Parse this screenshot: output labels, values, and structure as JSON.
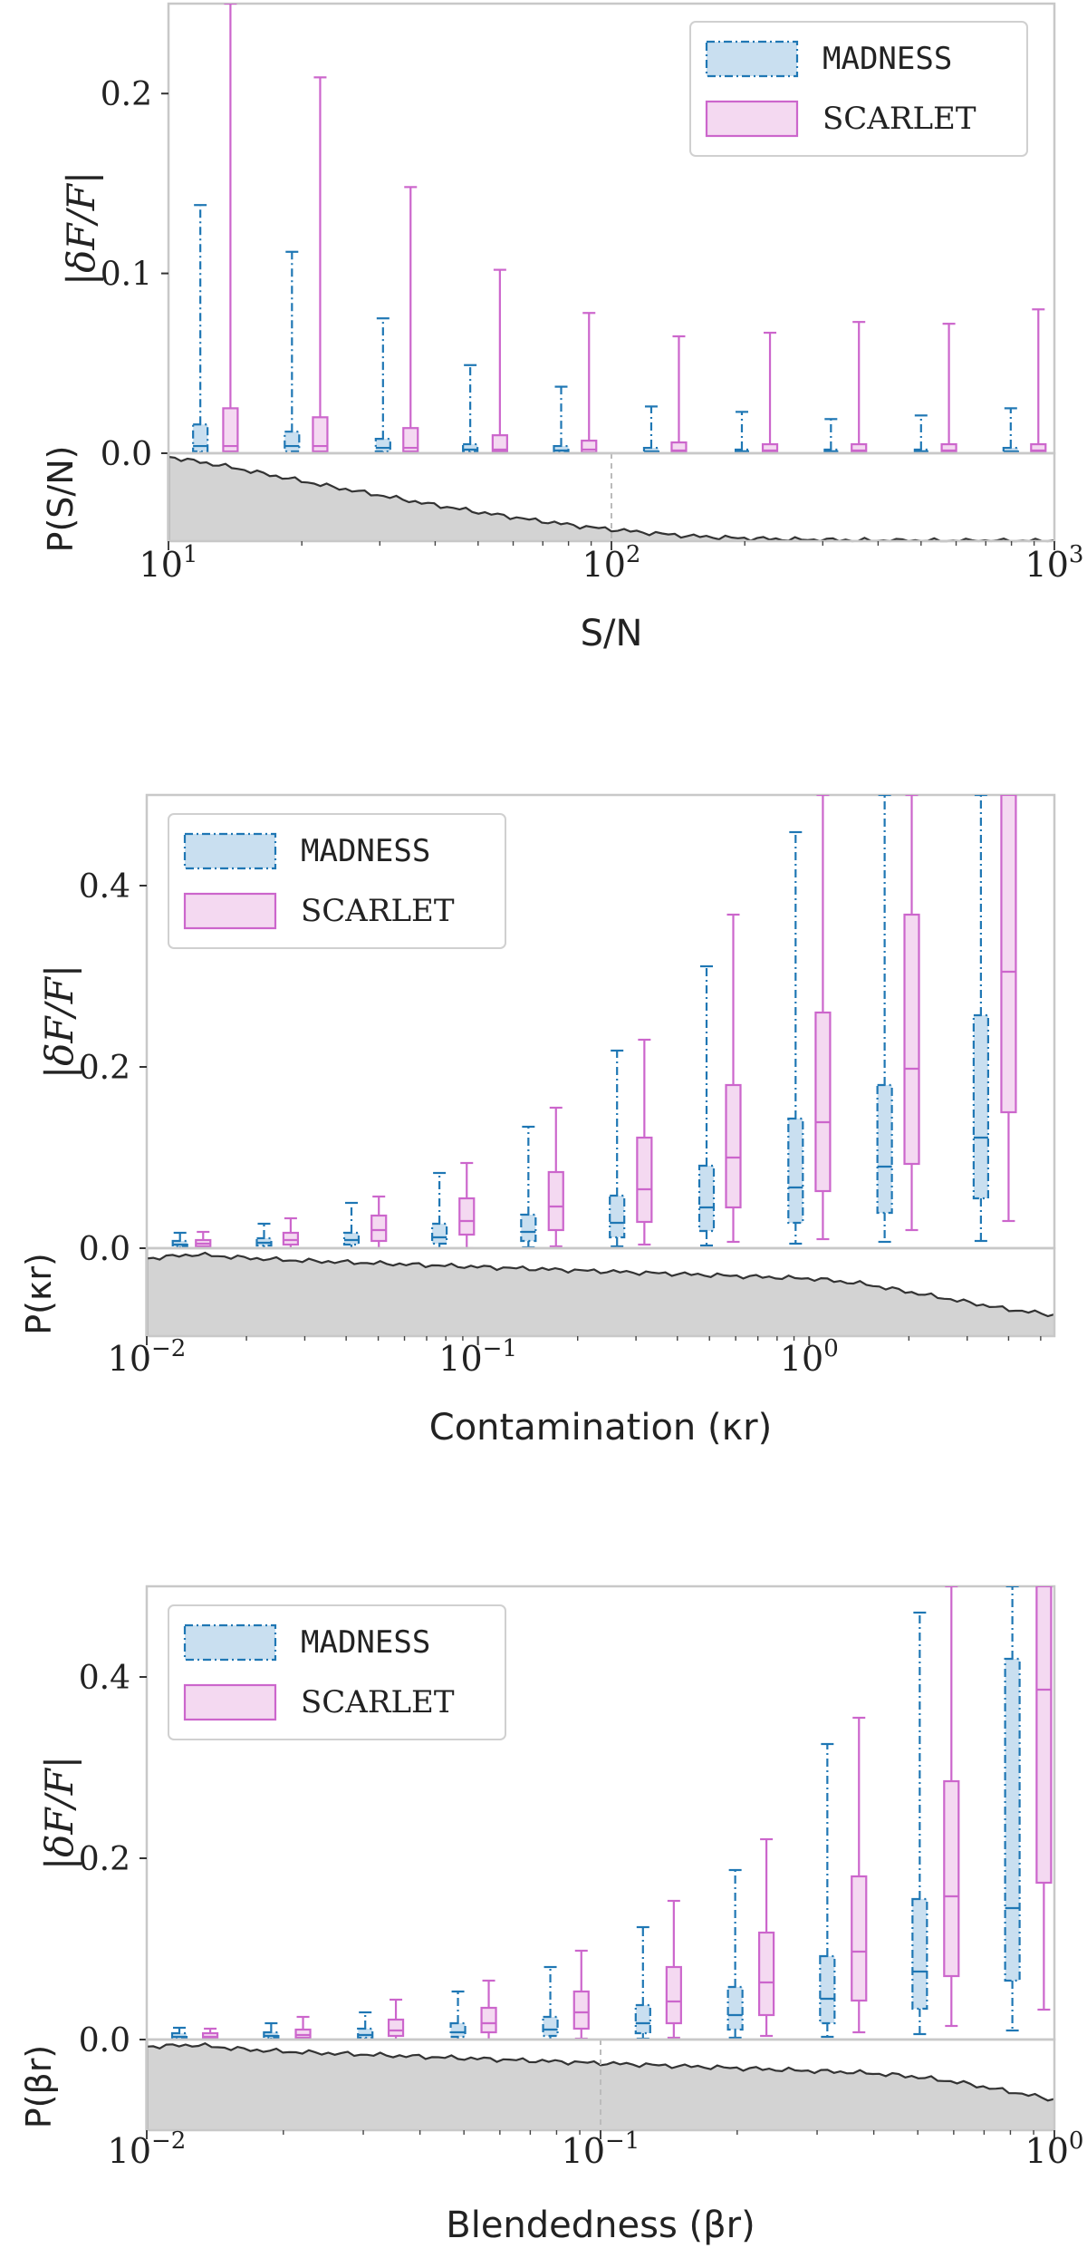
{
  "colors": {
    "madness_edge": "#1f77b4",
    "madness_fill": "#c9dff0",
    "scarlet_edge": "#cc66cc",
    "scarlet_fill": "#f4d9f1",
    "hist_fill": "#d3d3d3",
    "hist_line": "#333333",
    "frame": "#c8c8c8"
  },
  "chart_data": [
    {
      "type": "box",
      "title": "",
      "xlabel": "S/N",
      "ylabel": "|δF/F|",
      "xlim": [
        10,
        1000
      ],
      "xscale": "log",
      "ylim": [
        0,
        0.25
      ],
      "yticks": [
        0.0,
        0.1,
        0.2
      ],
      "ytick_labels": [
        "0.0",
        "0.1",
        "0.2"
      ],
      "xtick_exponents": [
        "1",
        "2",
        "3"
      ],
      "legend": {
        "placement": "top-right",
        "entries": [
          "MADNESS",
          "SCARLET"
        ]
      },
      "hist_ylabel": "P(S/N)",
      "hist_marker_x": 100,
      "hist_shape": [
        1.0,
        0.9,
        0.78,
        0.66,
        0.55,
        0.44,
        0.34,
        0.25,
        0.17,
        0.11,
        0.06,
        0.035,
        0.02,
        0.012,
        0.007,
        0.005,
        0.004,
        0.003
      ],
      "series": [
        {
          "name": "MADNESS",
          "boxes": [
            {
              "x": 11.8,
              "min": 0,
              "q1": 0.001,
              "med": 0.004,
              "q3": 0.016,
              "max": 0.138
            },
            {
              "x": 19.0,
              "min": 0,
              "q1": 0.001,
              "med": 0.004,
              "q3": 0.012,
              "max": 0.112
            },
            {
              "x": 30.5,
              "min": 0,
              "q1": 0.001,
              "med": 0.003,
              "q3": 0.008,
              "max": 0.075
            },
            {
              "x": 48.0,
              "min": 0,
              "q1": 0.001,
              "med": 0.002,
              "q3": 0.005,
              "max": 0.049
            },
            {
              "x": 77.0,
              "min": 0,
              "q1": 0.0005,
              "med": 0.0015,
              "q3": 0.004,
              "max": 0.037
            },
            {
              "x": 123,
              "min": 0,
              "q1": 0.0005,
              "med": 0.001,
              "q3": 0.003,
              "max": 0.026
            },
            {
              "x": 197,
              "min": 0,
              "q1": 0.0005,
              "med": 0.001,
              "q3": 0.002,
              "max": 0.023
            },
            {
              "x": 313,
              "min": 0,
              "q1": 0.0005,
              "med": 0.001,
              "q3": 0.002,
              "max": 0.019
            },
            {
              "x": 500,
              "min": 0,
              "q1": 0.0005,
              "med": 0.001,
              "q3": 0.002,
              "max": 0.021
            },
            {
              "x": 797,
              "min": 0,
              "q1": 0.0005,
              "med": 0.001,
              "q3": 0.003,
              "max": 0.025
            }
          ]
        },
        {
          "name": "SCARLET",
          "boxes": [
            {
              "x": 13.8,
              "min": 0,
              "q1": 0.001,
              "med": 0.004,
              "q3": 0.025,
              "max": 0.25
            },
            {
              "x": 22.0,
              "min": 0,
              "q1": 0.001,
              "med": 0.004,
              "q3": 0.02,
              "max": 0.209
            },
            {
              "x": 35.2,
              "min": 0,
              "q1": 0.001,
              "med": 0.003,
              "q3": 0.014,
              "max": 0.148
            },
            {
              "x": 56.0,
              "min": 0,
              "q1": 0.001,
              "med": 0.002,
              "q3": 0.01,
              "max": 0.102
            },
            {
              "x": 89.0,
              "min": 0,
              "q1": 0.0005,
              "med": 0.002,
              "q3": 0.007,
              "max": 0.078
            },
            {
              "x": 142,
              "min": 0,
              "q1": 0.0005,
              "med": 0.0015,
              "q3": 0.006,
              "max": 0.065
            },
            {
              "x": 228,
              "min": 0,
              "q1": 0.0005,
              "med": 0.0015,
              "q3": 0.005,
              "max": 0.067
            },
            {
              "x": 362,
              "min": 0,
              "q1": 0.0005,
              "med": 0.0015,
              "q3": 0.005,
              "max": 0.073
            },
            {
              "x": 578,
              "min": 0,
              "q1": 0.0005,
              "med": 0.0015,
              "q3": 0.005,
              "max": 0.072
            },
            {
              "x": 920,
              "min": 0,
              "q1": 0.0005,
              "med": 0.0015,
              "q3": 0.005,
              "max": 0.08
            }
          ]
        }
      ]
    },
    {
      "type": "box",
      "title": "",
      "xlabel": "Contamination (κr)",
      "ylabel": "|δF/F|",
      "xlim": [
        0.01,
        5.5
      ],
      "xscale": "log",
      "ylim": [
        0,
        0.5
      ],
      "yticks": [
        0.0,
        0.2,
        0.4
      ],
      "ytick_labels": [
        "0.0",
        "0.2",
        "0.4"
      ],
      "xtick_exponents": [
        "−2",
        "−1",
        "0"
      ],
      "legend": {
        "placement": "top-left",
        "entries": [
          "MADNESS",
          "SCARLET"
        ]
      },
      "hist_ylabel": "P(κr)",
      "hist_marker_x": null,
      "hist_shape": [
        0.92,
        0.97,
        0.93,
        0.9,
        0.88,
        0.86,
        0.84,
        0.82,
        0.8,
        0.78,
        0.76,
        0.74,
        0.72,
        0.7,
        0.68,
        0.62,
        0.52,
        0.42,
        0.32,
        0.25
      ],
      "series": [
        {
          "name": "MADNESS",
          "boxes": [
            {
              "x": 0.0126,
              "min": 0,
              "q1": 0.002,
              "med": 0.004,
              "q3": 0.008,
              "max": 0.017
            },
            {
              "x": 0.0226,
              "min": 0,
              "q1": 0.003,
              "med": 0.006,
              "q3": 0.011,
              "max": 0.027
            },
            {
              "x": 0.0415,
              "min": 0,
              "q1": 0.004,
              "med": 0.009,
              "q3": 0.017,
              "max": 0.05
            },
            {
              "x": 0.0765,
              "min": 0,
              "q1": 0.005,
              "med": 0.012,
              "q3": 0.027,
              "max": 0.083
            },
            {
              "x": 0.142,
              "min": 0.001,
              "q1": 0.008,
              "med": 0.018,
              "q3": 0.037,
              "max": 0.134
            },
            {
              "x": 0.263,
              "min": 0.002,
              "q1": 0.012,
              "med": 0.028,
              "q3": 0.058,
              "max": 0.218
            },
            {
              "x": 0.49,
              "min": 0.003,
              "q1": 0.019,
              "med": 0.045,
              "q3": 0.091,
              "max": 0.311
            },
            {
              "x": 0.91,
              "min": 0.005,
              "q1": 0.028,
              "med": 0.067,
              "q3": 0.143,
              "max": 0.459
            },
            {
              "x": 1.69,
              "min": 0.007,
              "q1": 0.039,
              "med": 0.09,
              "q3": 0.18,
              "max": 0.5
            },
            {
              "x": 3.3,
              "min": 0.008,
              "q1": 0.055,
              "med": 0.122,
              "q3": 0.257,
              "max": 0.5
            }
          ]
        },
        {
          "name": "SCARLET",
          "boxes": [
            {
              "x": 0.0148,
              "min": 0,
              "q1": 0.002,
              "med": 0.005,
              "q3": 0.009,
              "max": 0.018
            },
            {
              "x": 0.0272,
              "min": 0,
              "q1": 0.004,
              "med": 0.009,
              "q3": 0.017,
              "max": 0.033
            },
            {
              "x": 0.0502,
              "min": 0,
              "q1": 0.008,
              "med": 0.02,
              "q3": 0.036,
              "max": 0.057
            },
            {
              "x": 0.0925,
              "min": 0,
              "q1": 0.015,
              "med": 0.03,
              "q3": 0.055,
              "max": 0.094
            },
            {
              "x": 0.172,
              "min": 0.002,
              "q1": 0.02,
              "med": 0.046,
              "q3": 0.084,
              "max": 0.155
            },
            {
              "x": 0.318,
              "min": 0.004,
              "q1": 0.029,
              "med": 0.065,
              "q3": 0.122,
              "max": 0.23
            },
            {
              "x": 0.59,
              "min": 0.007,
              "q1": 0.045,
              "med": 0.1,
              "q3": 0.18,
              "max": 0.368
            },
            {
              "x": 1.1,
              "min": 0.01,
              "q1": 0.063,
              "med": 0.139,
              "q3": 0.26,
              "max": 0.5
            },
            {
              "x": 2.04,
              "min": 0.02,
              "q1": 0.093,
              "med": 0.198,
              "q3": 0.368,
              "max": 0.5
            },
            {
              "x": 4.0,
              "min": 0.03,
              "q1": 0.15,
              "med": 0.305,
              "q3": 0.5,
              "max": 0.5
            }
          ]
        }
      ]
    },
    {
      "type": "box",
      "title": "",
      "xlabel": "Blendedness (βr)",
      "ylabel": "|δF/F|",
      "xlim": [
        0.01,
        1
      ],
      "xscale": "log",
      "ylim": [
        0,
        0.5
      ],
      "yticks": [
        0.0,
        0.2,
        0.4
      ],
      "ytick_labels": [
        "0.0",
        "0.2",
        "0.4"
      ],
      "xtick_exponents": [
        "−2",
        "−1",
        "0"
      ],
      "legend": {
        "placement": "top-left",
        "entries": [
          "MADNESS",
          "SCARLET"
        ]
      },
      "hist_ylabel": "P(βr)",
      "hist_marker_x": 0.1,
      "hist_shape": [
        0.96,
        0.98,
        0.93,
        0.9,
        0.88,
        0.86,
        0.84,
        0.82,
        0.8,
        0.78,
        0.76,
        0.74,
        0.72,
        0.7,
        0.68,
        0.66,
        0.62,
        0.55,
        0.45,
        0.35
      ],
      "series": [
        {
          "name": "MADNESS",
          "boxes": [
            {
              "x": 0.0118,
              "min": 0,
              "q1": 0.001,
              "med": 0.003,
              "q3": 0.007,
              "max": 0.013
            },
            {
              "x": 0.0188,
              "min": 0,
              "q1": 0.002,
              "med": 0.004,
              "q3": 0.008,
              "max": 0.018
            },
            {
              "x": 0.0303,
              "min": 0,
              "q1": 0.002,
              "med": 0.005,
              "q3": 0.012,
              "max": 0.03
            },
            {
              "x": 0.0485,
              "min": 0,
              "q1": 0.003,
              "med": 0.008,
              "q3": 0.018,
              "max": 0.053
            },
            {
              "x": 0.0775,
              "min": 0,
              "q1": 0.004,
              "med": 0.011,
              "q3": 0.025,
              "max": 0.08
            },
            {
              "x": 0.124,
              "min": 0.001,
              "q1": 0.007,
              "med": 0.018,
              "q3": 0.038,
              "max": 0.124
            },
            {
              "x": 0.198,
              "min": 0.002,
              "q1": 0.011,
              "med": 0.027,
              "q3": 0.058,
              "max": 0.187
            },
            {
              "x": 0.316,
              "min": 0.003,
              "q1": 0.018,
              "med": 0.045,
              "q3": 0.092,
              "max": 0.326
            },
            {
              "x": 0.505,
              "min": 0.006,
              "q1": 0.034,
              "med": 0.075,
              "q3": 0.155,
              "max": 0.471
            },
            {
              "x": 0.808,
              "min": 0.01,
              "q1": 0.065,
              "med": 0.145,
              "q3": 0.42,
              "max": 0.5
            }
          ]
        },
        {
          "name": "SCARLET",
          "boxes": [
            {
              "x": 0.0138,
              "min": 0,
              "q1": 0.001,
              "med": 0.003,
              "q3": 0.007,
              "max": 0.012
            },
            {
              "x": 0.0221,
              "min": 0,
              "q1": 0.002,
              "med": 0.005,
              "q3": 0.011,
              "max": 0.025
            },
            {
              "x": 0.0354,
              "min": 0,
              "q1": 0.004,
              "med": 0.01,
              "q3": 0.022,
              "max": 0.044
            },
            {
              "x": 0.0567,
              "min": 0,
              "q1": 0.008,
              "med": 0.018,
              "q3": 0.035,
              "max": 0.065
            },
            {
              "x": 0.0907,
              "min": 0.001,
              "q1": 0.012,
              "med": 0.03,
              "q3": 0.053,
              "max": 0.098
            },
            {
              "x": 0.145,
              "min": 0.002,
              "q1": 0.018,
              "med": 0.042,
              "q3": 0.08,
              "max": 0.153
            },
            {
              "x": 0.232,
              "min": 0.004,
              "q1": 0.027,
              "med": 0.063,
              "q3": 0.118,
              "max": 0.221
            },
            {
              "x": 0.371,
              "min": 0.008,
              "q1": 0.043,
              "med": 0.097,
              "q3": 0.18,
              "max": 0.355
            },
            {
              "x": 0.593,
              "min": 0.015,
              "q1": 0.07,
              "med": 0.158,
              "q3": 0.285,
              "max": 0.5
            },
            {
              "x": 0.948,
              "min": 0.033,
              "q1": 0.173,
              "med": 0.386,
              "q3": 0.5,
              "max": 0.5
            }
          ]
        }
      ]
    }
  ]
}
